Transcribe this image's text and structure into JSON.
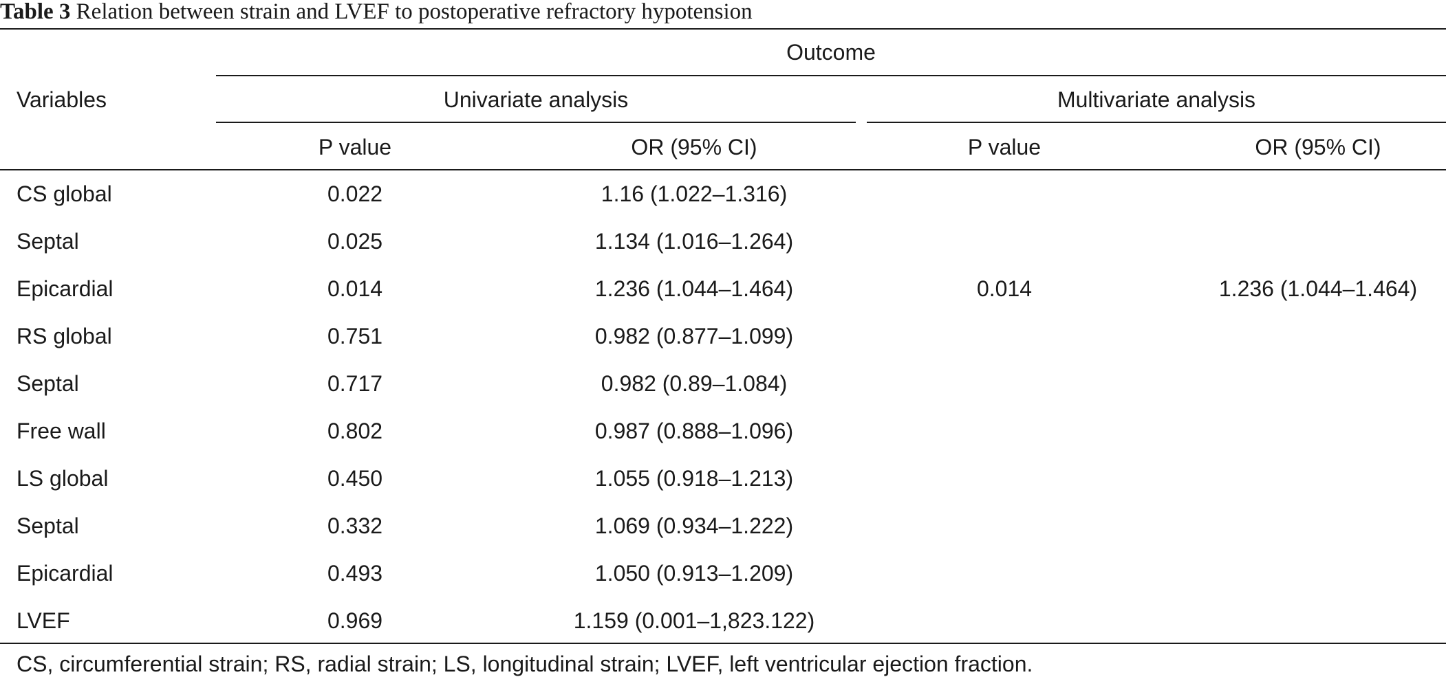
{
  "caption": {
    "label": "Table 3",
    "text": "Relation between strain and LVEF to postoperative refractory hypotension"
  },
  "header": {
    "variables": "Variables",
    "outcome": "Outcome",
    "univariate": "Univariate analysis",
    "multivariate": "Multivariate analysis",
    "p_value": "P value",
    "or_ci": "OR (95% CI)"
  },
  "rows": [
    {
      "variable": "CS global",
      "uni_p": "0.022",
      "uni_or": "1.16 (1.022–1.316)",
      "multi_p": "",
      "multi_or": ""
    },
    {
      "variable": "Septal",
      "uni_p": "0.025",
      "uni_or": "1.134 (1.016–1.264)",
      "multi_p": "",
      "multi_or": ""
    },
    {
      "variable": "Epicardial",
      "uni_p": "0.014",
      "uni_or": "1.236 (1.044–1.464)",
      "multi_p": "0.014",
      "multi_or": "1.236 (1.044–1.464)"
    },
    {
      "variable": "RS global",
      "uni_p": "0.751",
      "uni_or": "0.982 (0.877–1.099)",
      "multi_p": "",
      "multi_or": ""
    },
    {
      "variable": "Septal",
      "uni_p": "0.717",
      "uni_or": "0.982 (0.89–1.084)",
      "multi_p": "",
      "multi_or": ""
    },
    {
      "variable": "Free wall",
      "uni_p": "0.802",
      "uni_or": "0.987 (0.888–1.096)",
      "multi_p": "",
      "multi_or": ""
    },
    {
      "variable": "LS global",
      "uni_p": "0.450",
      "uni_or": "1.055 (0.918–1.213)",
      "multi_p": "",
      "multi_or": ""
    },
    {
      "variable": "Septal",
      "uni_p": "0.332",
      "uni_or": "1.069 (0.934–1.222)",
      "multi_p": "",
      "multi_or": ""
    },
    {
      "variable": "Epicardial",
      "uni_p": "0.493",
      "uni_or": "1.050 (0.913–1.209)",
      "multi_p": "",
      "multi_or": ""
    },
    {
      "variable": "LVEF",
      "uni_p": "0.969",
      "uni_or": "1.159 (0.001–1,823.122)",
      "multi_p": "",
      "multi_or": ""
    }
  ],
  "footnote": "CS, circumferential strain; RS, radial strain; LS, longitudinal strain; LVEF, left ventricular ejection fraction."
}
